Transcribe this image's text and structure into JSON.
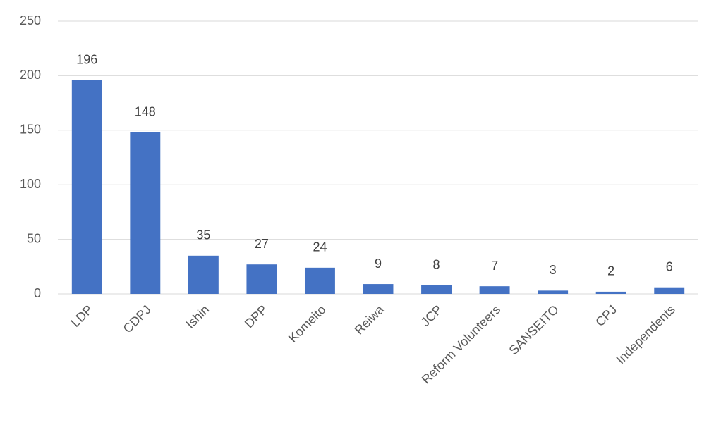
{
  "chart_data": {
    "type": "bar",
    "categories": [
      "LDP",
      "CDPJ",
      "Ishin",
      "DPP",
      "Komeito",
      "Reiwa",
      "JCP",
      "Reform Volunteers",
      "SANSEITO",
      "CPJ",
      "Independents"
    ],
    "values": [
      196,
      148,
      35,
      27,
      24,
      9,
      8,
      7,
      3,
      2,
      6
    ],
    "color": "#4472c4",
    "ylim": [
      0,
      250
    ],
    "yticks": [
      0,
      50,
      100,
      150,
      200,
      250
    ],
    "grid": true
  }
}
